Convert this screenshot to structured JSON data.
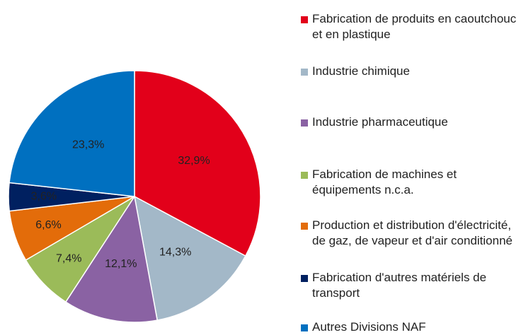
{
  "chart_data": {
    "type": "pie",
    "categories": [
      "Fabrication de produits en caoutchouc et en plastique",
      "Industrie chimique",
      "Industrie pharmaceutique",
      "Fabrication de machines et équipements n.c.a.",
      "Production et distribution d'électricité, de gaz, de vapeur et d'air conditionné",
      "Fabrication d'autres matériels de transport",
      "Autres Divisions NAF"
    ],
    "values": [
      32.9,
      14.3,
      12.1,
      7.4,
      6.6,
      3.6,
      23.3
    ],
    "value_labels": [
      "32,9%",
      "14,3%",
      "12,1%",
      "7,4%",
      "6,6%",
      "3,6%",
      "23,3%"
    ],
    "colors": [
      "#e2001a",
      "#a3b8c8",
      "#8a62a3",
      "#9bbb59",
      "#e36c0a",
      "#002060",
      "#0070c0"
    ]
  }
}
